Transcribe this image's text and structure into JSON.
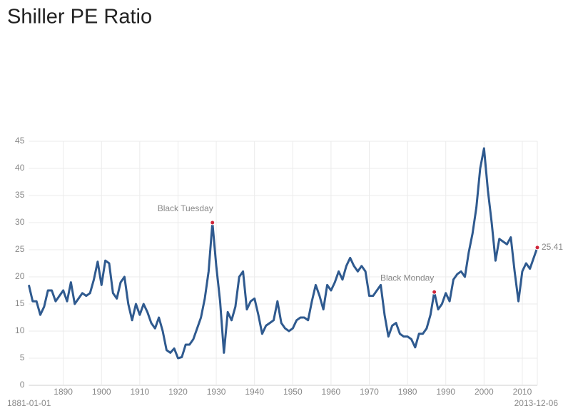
{
  "chart_data": {
    "type": "line",
    "title": "Shiller PE Ratio",
    "x_start_label": "1881-01-01",
    "x_end_label": "2013-12-06",
    "x": [
      1881,
      1882,
      1883,
      1884,
      1885,
      1886,
      1887,
      1888,
      1889,
      1890,
      1891,
      1892,
      1893,
      1894,
      1895,
      1896,
      1897,
      1898,
      1899,
      1900,
      1901,
      1902,
      1903,
      1904,
      1905,
      1906,
      1907,
      1908,
      1909,
      1910,
      1911,
      1912,
      1913,
      1914,
      1915,
      1916,
      1917,
      1918,
      1919,
      1920,
      1921,
      1922,
      1923,
      1924,
      1925,
      1926,
      1927,
      1928,
      1929,
      1930,
      1931,
      1932,
      1933,
      1934,
      1935,
      1936,
      1937,
      1938,
      1939,
      1940,
      1941,
      1942,
      1943,
      1944,
      1945,
      1946,
      1947,
      1948,
      1949,
      1950,
      1951,
      1952,
      1953,
      1954,
      1955,
      1956,
      1957,
      1958,
      1959,
      1960,
      1961,
      1962,
      1963,
      1964,
      1965,
      1966,
      1967,
      1968,
      1969,
      1970,
      1971,
      1972,
      1973,
      1974,
      1975,
      1976,
      1977,
      1978,
      1979,
      1980,
      1981,
      1982,
      1983,
      1984,
      1985,
      1986,
      1987,
      1988,
      1989,
      1990,
      1991,
      1992,
      1993,
      1994,
      1995,
      1996,
      1997,
      1998,
      1999,
      2000,
      2001,
      2002,
      2003,
      2004,
      2005,
      2006,
      2007,
      2008,
      2009,
      2010,
      2011,
      2012,
      2013.93
    ],
    "series": [
      {
        "name": "Shiller PE Ratio",
        "color": "#2f5a8f",
        "values": [
          18.5,
          15.5,
          15.5,
          13,
          14.5,
          17.5,
          17.5,
          15.5,
          16.5,
          17.5,
          15.5,
          19,
          15,
          16,
          17,
          16.5,
          17,
          19.5,
          22.8,
          18.5,
          23,
          22.5,
          17,
          16,
          19,
          20,
          15,
          12,
          15,
          13,
          15,
          13.5,
          11.5,
          10.5,
          12.5,
          10,
          6.5,
          6,
          6.8,
          5,
          5.2,
          7.5,
          7.5,
          8.5,
          10.5,
          12.5,
          16,
          21,
          30,
          22,
          15.5,
          6,
          13.5,
          12,
          14.5,
          20,
          21,
          14,
          15.5,
          16,
          13,
          9.5,
          11,
          11.5,
          12,
          15.5,
          11.5,
          10.5,
          10,
          10.5,
          12,
          12.5,
          12.5,
          12,
          15.5,
          18.5,
          16.5,
          14,
          18.5,
          17.5,
          19,
          21,
          19.5,
          22,
          23.5,
          22,
          21,
          22,
          21,
          16.5,
          16.5,
          17.5,
          18.5,
          13,
          9,
          11,
          11.5,
          9.5,
          9,
          9,
          8.5,
          7,
          9.5,
          9.5,
          10.5,
          13,
          17.2,
          14,
          15,
          17,
          15.5,
          19.5,
          20.5,
          21,
          20,
          24.5,
          28,
          32.8,
          40,
          43.7,
          36,
          30,
          23,
          27,
          26.5,
          26,
          27.3,
          21,
          15.5,
          21,
          22.5,
          21.5,
          25.41
        ]
      }
    ],
    "annotations": [
      {
        "text": "Black Tuesday",
        "x": 1929,
        "y": 30
      },
      {
        "text": "Black Monday",
        "x": 1987,
        "y": 17.2
      }
    ],
    "xlim": [
      1881,
      2013.93
    ],
    "xticks": [
      1890,
      1900,
      1910,
      1920,
      1930,
      1940,
      1950,
      1960,
      1970,
      1980,
      1990,
      2000,
      2010
    ],
    "ylim": [
      0,
      45
    ],
    "yticks": [
      0,
      5,
      10,
      15,
      20,
      25,
      30,
      35,
      40,
      45
    ],
    "grid": true
  }
}
